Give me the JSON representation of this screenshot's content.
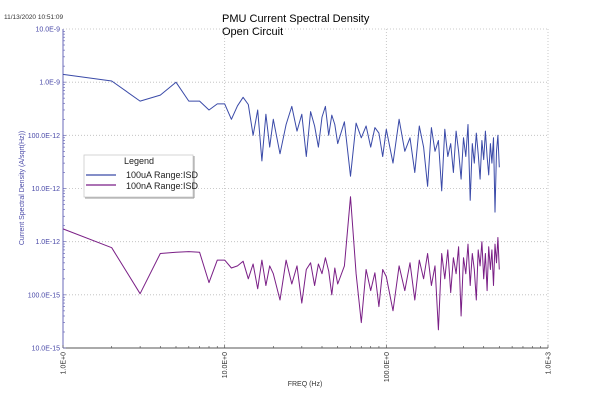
{
  "timestamp": "11/13/2020 10:51:09",
  "chart_data": {
    "type": "line",
    "title": "PMU Current Spectral Density",
    "subtitle": "Open Circuit",
    "xlabel": "FREQ (Hz)",
    "ylabel": "Current Spectral Density (A/sqrt(Hz))",
    "xscale": "log",
    "yscale": "log",
    "xlim": [
      1,
      1000
    ],
    "ylim": [
      1e-14,
      1e-08
    ],
    "grid": true,
    "x_tick_labels": [
      "1.0E+0",
      "10.0E+0",
      "100.0E+0",
      "1.0E+3"
    ],
    "y_tick_labels": [
      "10.0E-9",
      "1.0E-9",
      "100.0E-12",
      "10.0E-12",
      "1.0E-12",
      "100.0E-15",
      "10.0E-15"
    ],
    "legend": {
      "title": "Legend",
      "placement": "left-middle"
    },
    "x": [
      1,
      2,
      3,
      4,
      5,
      6,
      7,
      8,
      9,
      10,
      11,
      12,
      13,
      14,
      15,
      16,
      17,
      18,
      19,
      20,
      22,
      24,
      26,
      28,
      30,
      32,
      34,
      36,
      38,
      40,
      42,
      44,
      46,
      48,
      50,
      55,
      60,
      65,
      70,
      75,
      80,
      85,
      90,
      95,
      100,
      110,
      120,
      130,
      140,
      150,
      160,
      170,
      180,
      190,
      200,
      210,
      220,
      230,
      240,
      250,
      260,
      270,
      280,
      290,
      300,
      310,
      320,
      330,
      340,
      350,
      360,
      370,
      380,
      390,
      400,
      410,
      420,
      430,
      440,
      450,
      460,
      470,
      480,
      490,
      500
    ],
    "series": [
      {
        "name": "100uA Range:ISD",
        "color": "#3a4aa8",
        "values": [
          1.4e-09,
          1.05e-09,
          4.4e-10,
          5.7e-10,
          1e-09,
          4.4e-10,
          4.4e-10,
          3e-10,
          3.9e-10,
          3.9e-10,
          2e-10,
          3.6e-10,
          5.2e-10,
          3.8e-10,
          1e-10,
          3e-10,
          3.3e-11,
          2.5e-10,
          6e-11,
          2e-10,
          4.5e-11,
          1.6e-10,
          3.5e-10,
          1.2e-10,
          2.5e-10,
          4e-11,
          2.8e-10,
          1.5e-10,
          6e-11,
          2.2e-10,
          3.5e-10,
          1e-10,
          2.4e-10,
          1.6e-10,
          7e-11,
          1.8e-10,
          1.7e-11,
          1.7e-10,
          9e-11,
          1.5e-10,
          6e-11,
          1.4e-10,
          1.1e-10,
          4e-11,
          1.3e-10,
          3e-11,
          2e-10,
          5e-11,
          9e-11,
          2e-11,
          1.5e-10,
          6e-11,
          1.1e-11,
          1.4e-10,
          5e-11,
          8e-11,
          9e-12,
          1.3e-10,
          4e-11,
          7e-11,
          2e-11,
          1.2e-10,
          5e-11,
          1.5e-11,
          9e-11,
          4e-11,
          1.6e-10,
          6e-12,
          7e-11,
          3e-11,
          1.1e-10,
          4.5e-11,
          1.5e-11,
          8e-11,
          3.5e-11,
          1.2e-10,
          4e-11,
          1.8e-11,
          7e-11,
          3e-11,
          9e-11,
          3.6e-12,
          5e-11,
          1e-10,
          2.5e-11
        ]
      },
      {
        "name": "100nA Range:ISD",
        "color": "#7a1f86",
        "values": [
          1.74e-12,
          7.7e-13,
          1.05e-13,
          6e-13,
          6.3e-13,
          6.5e-13,
          6.3e-13,
          1.7e-13,
          4.5e-13,
          4.5e-13,
          3.2e-13,
          3.5e-13,
          4.3e-13,
          2e-13,
          3.8e-13,
          1.3e-13,
          4.5e-13,
          1.5e-13,
          3.5e-13,
          2.5e-13,
          8e-14,
          4.5e-13,
          1.6e-13,
          3.5e-13,
          7e-14,
          3e-13,
          4e-13,
          1.5e-13,
          3.8e-13,
          2.5e-13,
          5e-13,
          2.8e-13,
          1e-13,
          3.2e-13,
          1.6e-13,
          3.5e-13,
          7e-12,
          2.5e-13,
          3e-14,
          3e-13,
          1.2e-13,
          2.6e-13,
          6e-14,
          3e-13,
          2.2e-13,
          5e-14,
          3.5e-13,
          1.2e-13,
          4e-13,
          8e-14,
          4.5e-13,
          2e-13,
          6e-13,
          1.5e-13,
          3.5e-13,
          2.2e-14,
          6e-13,
          2e-13,
          7e-13,
          1.1e-13,
          5e-13,
          2.5e-13,
          8e-13,
          4e-14,
          5e-13,
          2.5e-13,
          9e-13,
          1.5e-13,
          6e-13,
          3e-13,
          8e-14,
          7e-13,
          3.5e-13,
          1e-12,
          2e-13,
          6e-13,
          1.2e-13,
          8e-13,
          3e-13,
          7e-13,
          1.5e-13,
          9e-13,
          4e-13,
          1.2e-12,
          3e-13
        ]
      }
    ]
  }
}
